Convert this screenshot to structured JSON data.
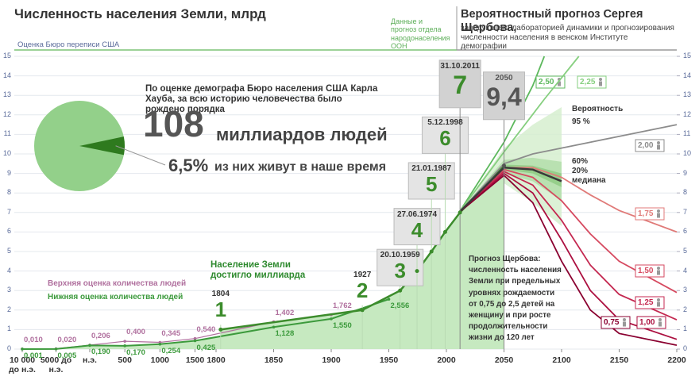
{
  "chart_data": [
    {
      "type": "line",
      "title": "Численность населения Земли, млрд",
      "census_label": "Оценка Бюро переписи США",
      "un_label": "Данные и прогноз отдела народонаселения ООН",
      "forecast_title": "Вероятностный прогноз Сергея Щербова,",
      "forecast_subtitle": "заведующего лабораторией динамики и прогнозирования численности населения в венском Институте демографии",
      "billion_note": "Население Земли достигло миллиарда",
      "forecast_note": "Прогноз Щербова: численность населения Земли при предельных уровнях рождаемости от 0,75 до 2,5 детей на женщину и при росте продолжительности жизни до 120 лет",
      "xlim": [
        -10000,
        2200
      ],
      "xticks": [
        {
          "value": -10000,
          "label": "10 000 до н.э."
        },
        {
          "value": -5000,
          "label": "5000 до н.э."
        },
        {
          "value": 0,
          "label": "н.э."
        },
        500,
        1000,
        1500,
        1800,
        1850,
        1900,
        1950,
        2000,
        2050,
        2100,
        2150,
        2200
      ],
      "ylim": [
        0,
        15
      ],
      "yticks": [
        0,
        1,
        2,
        3,
        4,
        5,
        6,
        7,
        8,
        9,
        10,
        11,
        12,
        13,
        14,
        15
      ],
      "y2lim": [
        0,
        15
      ],
      "y2ticks": [
        0,
        1,
        2,
        3,
        4,
        5,
        6,
        7,
        8,
        9,
        10,
        11,
        12,
        13,
        14,
        15
      ],
      "grid": true,
      "series": [
        {
          "name": "Верхняя оценка количества людей",
          "color": "#b0709e",
          "x": [
            -10000,
            -5000,
            0,
            500,
            1000,
            1500,
            1850,
            1900
          ],
          "values": [
            0.01,
            0.02,
            0.206,
            0.4,
            0.345,
            0.54,
            1.402,
            1.762
          ],
          "value_labels": [
            "0,010",
            "0,020",
            "0,206",
            "0,400",
            "0,345",
            "0,540",
            "1,402",
            "1,762"
          ]
        },
        {
          "name": "Нижняя оценка количества людей",
          "color": "#3c9a3c",
          "x": [
            -10000,
            -5000,
            0,
            500,
            1000,
            1500,
            1850,
            1900,
            1950
          ],
          "values": [
            0.001,
            0.005,
            0.19,
            0.17,
            0.254,
            0.425,
            1.128,
            1.55,
            2.556
          ],
          "value_labels": [
            "0,001",
            "0,005",
            "0,190",
            "0,170",
            "0,254",
            "0,425",
            "1,128",
            "1,550",
            "2,556"
          ]
        }
      ],
      "milestones": {
        "color": "#3c8c2c",
        "x": [
          1804,
          1927,
          1959.8,
          1974.5,
          1987.05,
          1998.93,
          2011.83,
          2050
        ],
        "dates": [
          "1804",
          "1927",
          "20.10.1959",
          "27.06.1974",
          "21.01.1987",
          "5.12.1998",
          "31.10.2011",
          "2050"
        ],
        "values": [
          1,
          2,
          3,
          4,
          5,
          6,
          7,
          9.4
        ],
        "value_labels": [
          "1",
          "2",
          "3",
          "4",
          "5",
          "6",
          "7",
          "9,4"
        ]
      },
      "forecasts": [
        {
          "name": "2,50",
          "color": "#5cb85c",
          "x": [
            2011,
            2050,
            2075,
            2085
          ],
          "values": [
            7,
            10.6,
            13.5,
            15
          ]
        },
        {
          "name": "2,25",
          "color": "#86cf7f",
          "x": [
            2011,
            2050,
            2085,
            2115
          ],
          "values": [
            7,
            10.1,
            12.8,
            15
          ]
        },
        {
          "name": "2,00",
          "color": "#8c8c8c",
          "x": [
            2011,
            2050,
            2075,
            2100,
            2125,
            2150,
            2200
          ],
          "values": [
            7,
            9.5,
            10,
            10.3,
            10.6,
            10.9,
            11.5
          ]
        },
        {
          "name": "1,75",
          "color": "#e07a78",
          "x": [
            2011,
            2050,
            2075,
            2100,
            2125,
            2150,
            2200
          ],
          "values": [
            7,
            9.3,
            9.3,
            8.8,
            7.9,
            7.1,
            6
          ]
        },
        {
          "name": "1,50",
          "color": "#d64a60",
          "x": [
            2011,
            2050,
            2075,
            2100,
            2125,
            2150,
            2200
          ],
          "values": [
            7,
            9.2,
            8.8,
            7.6,
            5.9,
            4.5,
            2.9
          ]
        },
        {
          "name": "1,25",
          "color": "#c42850",
          "x": [
            2011,
            2050,
            2075,
            2100,
            2125,
            2150,
            2200
          ],
          "values": [
            7,
            9.1,
            8.4,
            6.6,
            4.3,
            2.8,
            1.5
          ]
        },
        {
          "name": "1,00",
          "color": "#ac1040",
          "x": [
            2011,
            2050,
            2075,
            2100,
            2125,
            2150,
            2200
          ],
          "values": [
            7,
            9,
            8,
            5.6,
            3,
            1.5,
            0.5
          ]
        },
        {
          "name": "0,75",
          "color": "#8a0030",
          "x": [
            2011,
            2050,
            2075,
            2100,
            2125,
            2150,
            2200
          ],
          "values": [
            7,
            8.9,
            7.5,
            4.5,
            2,
            0.8,
            0.2
          ]
        },
        {
          "name": "медиана",
          "color": "#3a3a3a",
          "x": [
            2011,
            2050,
            2075,
            2100
          ],
          "values": [
            7,
            9.3,
            9.2,
            8.6
          ]
        }
      ],
      "bands": {
        "title": "Вероятность",
        "x": [
          2011,
          2050,
          2075,
          2100
        ],
        "items": [
          {
            "label": "95 %",
            "color": "#d6efcf",
            "lower": [
              7,
              8.5,
              7.5,
              6.3
            ],
            "upper": [
              7,
              10.3,
              11.5,
              12.4
            ]
          },
          {
            "label": "60%",
            "color": "#b3deaa",
            "lower": [
              7,
              9,
              8.6,
              7.6
            ],
            "upper": [
              7,
              9.7,
              9.8,
              9.6
            ]
          },
          {
            "label": "20%",
            "color": "#8fcb85",
            "lower": [
              7,
              9.2,
              9,
              8.3
            ],
            "upper": [
              7,
              9.45,
              9.4,
              9
            ]
          }
        ]
      }
    },
    {
      "type": "pie",
      "text": "По оценке демографа Бюро населения США Карла Хауба, за всю историю человечества было рождено порядка",
      "total": 108,
      "total_unit": "миллиардов людей",
      "values": [
        6.5
      ],
      "value_labels": [
        "6,5%"
      ],
      "note": "из них живут в наше время",
      "color": "#2e7a1e",
      "background": "#93d08a"
    }
  ]
}
